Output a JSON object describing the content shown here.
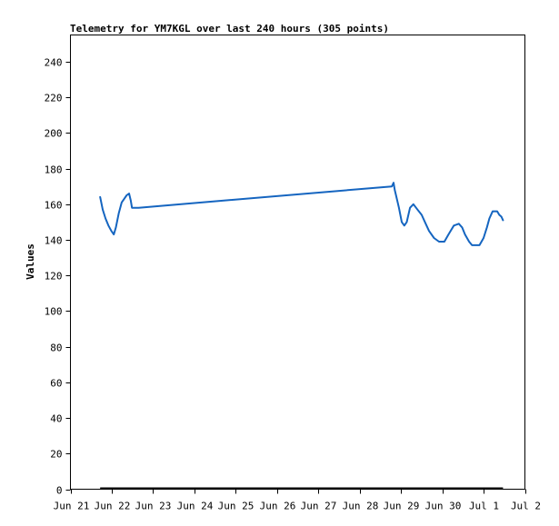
{
  "chart_data": {
    "type": "line",
    "title": "Telemetry for YM7KGL over last 240 hours (305 points)",
    "xlabel": "",
    "ylabel": "Values",
    "ylim": [
      0,
      255
    ],
    "yticks": [
      0,
      20,
      40,
      60,
      80,
      100,
      120,
      140,
      160,
      180,
      200,
      220,
      240
    ],
    "xticks": [
      "Jun 21",
      "Jun 22",
      "Jun 23",
      "Jun 24",
      "Jun 25",
      "Jun 26",
      "Jun 27",
      "Jun 28",
      "Jun 29",
      "Jun 30",
      "Jul 1",
      "Jul 2"
    ],
    "grid": false,
    "legend": "none",
    "series_color": "#1565c0",
    "baseline_color": "#000000",
    "series": [
      {
        "name": "",
        "x": [
          21.72,
          21.78,
          21.85,
          21.92,
          21.99,
          22.05,
          22.1,
          22.17,
          22.24,
          22.3,
          22.36,
          22.42,
          22.46,
          22.49,
          22.58,
          22.62,
          22.65,
          28.78,
          28.82,
          28.85,
          28.88,
          28.95,
          29.02,
          29.08,
          29.14,
          29.22,
          29.3,
          29.4,
          29.5,
          29.58,
          29.68,
          29.8,
          29.92,
          30.05,
          30.15,
          30.28,
          30.4,
          30.48,
          30.55,
          30.65,
          30.72,
          30.8,
          30.9,
          31.0,
          31.08,
          31.14,
          31.22,
          31.28,
          31.33,
          31.38,
          31.43,
          31.47
        ],
        "values": [
          164,
          157,
          152,
          148,
          145,
          143,
          147,
          155,
          161,
          163,
          165,
          166,
          162,
          158,
          158,
          158,
          158,
          170,
          172,
          168,
          165,
          158,
          150,
          148,
          150,
          158,
          160,
          157,
          154,
          150,
          145,
          141,
          139,
          139,
          143,
          148,
          149,
          147,
          143,
          139,
          137,
          137,
          137,
          141,
          147,
          152,
          156,
          156,
          156,
          154,
          153,
          151
        ]
      }
    ],
    "baseline": {
      "x": [
        21.72,
        31.47
      ],
      "values": [
        0,
        0
      ]
    }
  }
}
